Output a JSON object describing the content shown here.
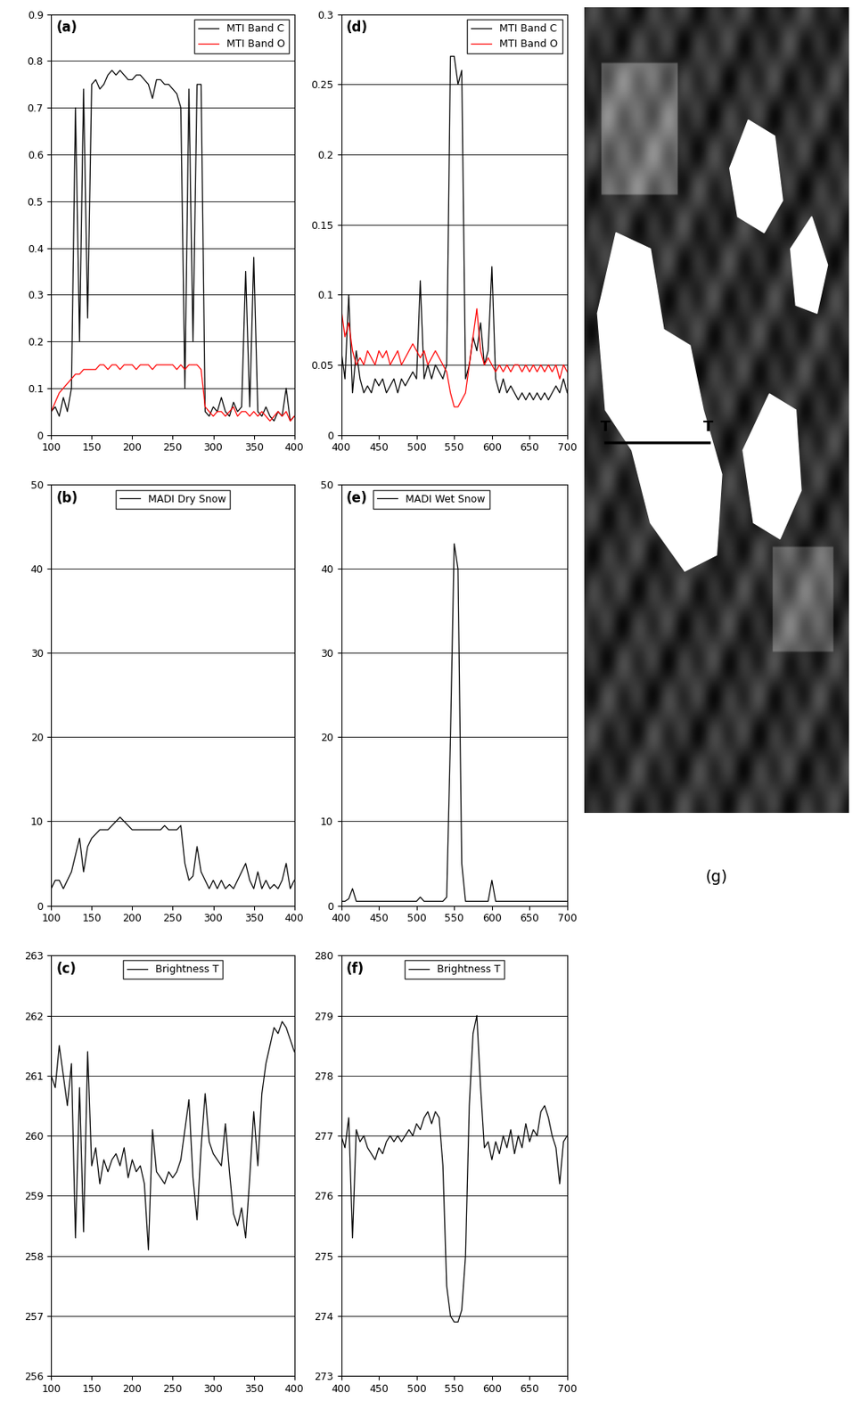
{
  "chart_data": [
    {
      "type": "line",
      "title": "(a)",
      "x": [
        100,
        105,
        110,
        115,
        120,
        125,
        130,
        135,
        140,
        145,
        150,
        155,
        160,
        165,
        170,
        175,
        180,
        185,
        190,
        195,
        200,
        205,
        210,
        215,
        220,
        225,
        230,
        235,
        240,
        245,
        250,
        255,
        260,
        265,
        270,
        275,
        280,
        285,
        290,
        295,
        300,
        305,
        310,
        315,
        320,
        325,
        330,
        335,
        340,
        345,
        350,
        355,
        360,
        365,
        370,
        375,
        380,
        385,
        390,
        395,
        400
      ],
      "series": [
        {
          "name": "MTI Band C",
          "color": "#000000",
          "values": [
            0.05,
            0.06,
            0.04,
            0.08,
            0.05,
            0.1,
            0.7,
            0.2,
            0.74,
            0.25,
            0.75,
            0.76,
            0.74,
            0.75,
            0.77,
            0.78,
            0.77,
            0.78,
            0.77,
            0.76,
            0.76,
            0.77,
            0.77,
            0.76,
            0.75,
            0.72,
            0.76,
            0.76,
            0.75,
            0.75,
            0.74,
            0.73,
            0.7,
            0.1,
            0.74,
            0.2,
            0.75,
            0.75,
            0.05,
            0.04,
            0.06,
            0.05,
            0.08,
            0.05,
            0.04,
            0.07,
            0.05,
            0.06,
            0.35,
            0.06,
            0.38,
            0.05,
            0.04,
            0.06,
            0.04,
            0.03,
            0.05,
            0.04,
            0.1,
            0.03,
            0.04
          ]
        },
        {
          "name": "MTI Band O",
          "color": "#ff0000",
          "values": [
            0.05,
            0.07,
            0.09,
            0.1,
            0.11,
            0.12,
            0.13,
            0.13,
            0.14,
            0.14,
            0.14,
            0.14,
            0.15,
            0.15,
            0.14,
            0.15,
            0.15,
            0.14,
            0.15,
            0.15,
            0.15,
            0.14,
            0.15,
            0.15,
            0.15,
            0.14,
            0.15,
            0.15,
            0.15,
            0.15,
            0.15,
            0.14,
            0.15,
            0.14,
            0.15,
            0.15,
            0.15,
            0.14,
            0.06,
            0.05,
            0.04,
            0.05,
            0.05,
            0.04,
            0.05,
            0.06,
            0.04,
            0.05,
            0.05,
            0.04,
            0.05,
            0.04,
            0.05,
            0.04,
            0.03,
            0.04,
            0.05,
            0.04,
            0.05,
            0.03,
            0.04
          ]
        }
      ],
      "xlim": [
        100,
        400
      ],
      "xticks": [
        100,
        150,
        200,
        250,
        300,
        350,
        400
      ],
      "ylim": [
        0,
        0.9
      ],
      "yticks": [
        0,
        0.1,
        0.2,
        0.3,
        0.4,
        0.5,
        0.6,
        0.7,
        0.8,
        0.9
      ],
      "grid": true,
      "legend": "upper right"
    },
    {
      "type": "line",
      "title": "(b)",
      "x": [
        100,
        105,
        110,
        115,
        120,
        125,
        130,
        135,
        140,
        145,
        150,
        155,
        160,
        165,
        170,
        175,
        180,
        185,
        190,
        195,
        200,
        205,
        210,
        215,
        220,
        225,
        230,
        235,
        240,
        245,
        250,
        255,
        260,
        265,
        270,
        275,
        280,
        285,
        290,
        295,
        300,
        305,
        310,
        315,
        320,
        325,
        330,
        335,
        340,
        345,
        350,
        355,
        360,
        365,
        370,
        375,
        380,
        385,
        390,
        395,
        400
      ],
      "series": [
        {
          "name": "MADI Dry Snow",
          "color": "#000000",
          "values": [
            2,
            3,
            3,
            2,
            3,
            4,
            6,
            8,
            4,
            7,
            8,
            8.5,
            9,
            9,
            9,
            9.5,
            10,
            10.5,
            10,
            9.5,
            9,
            9,
            9,
            9,
            9,
            9,
            9,
            9,
            9.5,
            9,
            9,
            9,
            9.5,
            5,
            3,
            3.5,
            7,
            4,
            3,
            2,
            3,
            2,
            3,
            2,
            2.5,
            2,
            3,
            4,
            5,
            3,
            2,
            4,
            2,
            3,
            2,
            2.5,
            2,
            3,
            5,
            2,
            3
          ]
        }
      ],
      "xlim": [
        100,
        400
      ],
      "xticks": [
        100,
        150,
        200,
        250,
        300,
        350,
        400
      ],
      "ylim": [
        0,
        50
      ],
      "yticks": [
        0,
        10,
        20,
        30,
        40,
        50
      ],
      "grid": true,
      "legend": "upper center"
    },
    {
      "type": "line",
      "title": "(c)",
      "x": [
        100,
        105,
        110,
        115,
        120,
        125,
        130,
        135,
        140,
        145,
        150,
        155,
        160,
        165,
        170,
        175,
        180,
        185,
        190,
        195,
        200,
        205,
        210,
        215,
        220,
        225,
        230,
        235,
        240,
        245,
        250,
        255,
        260,
        265,
        270,
        275,
        280,
        285,
        290,
        295,
        300,
        305,
        310,
        315,
        320,
        325,
        330,
        335,
        340,
        345,
        350,
        355,
        360,
        365,
        370,
        375,
        380,
        385,
        390,
        395,
        400
      ],
      "series": [
        {
          "name": "Brightness T",
          "color": "#000000",
          "values": [
            261,
            260.8,
            261.5,
            261,
            260.5,
            261.2,
            258.3,
            260.8,
            258.4,
            261.4,
            259.5,
            259.8,
            259.2,
            259.6,
            259.4,
            259.6,
            259.7,
            259.5,
            259.8,
            259.3,
            259.6,
            259.4,
            259.5,
            259.2,
            258.1,
            260.1,
            259.4,
            259.3,
            259.2,
            259.4,
            259.3,
            259.4,
            259.6,
            260.1,
            260.6,
            259.3,
            258.6,
            259.8,
            260.7,
            259.9,
            259.7,
            259.6,
            259.5,
            260.2,
            259.4,
            258.7,
            258.5,
            258.8,
            258.3,
            259.3,
            260.4,
            259.5,
            260.7,
            261.2,
            261.5,
            261.8,
            261.7,
            261.9,
            261.8,
            261.6,
            261.4
          ]
        }
      ],
      "xlim": [
        100,
        400
      ],
      "xticks": [
        100,
        150,
        200,
        250,
        300,
        350,
        400
      ],
      "ylim": [
        256,
        263
      ],
      "yticks": [
        256,
        257,
        258,
        259,
        260,
        261,
        262,
        263
      ],
      "grid": true,
      "legend": "upper center"
    },
    {
      "type": "line",
      "title": "(d)",
      "x": [
        400,
        405,
        410,
        415,
        420,
        425,
        430,
        435,
        440,
        445,
        450,
        455,
        460,
        465,
        470,
        475,
        480,
        485,
        490,
        495,
        500,
        505,
        510,
        515,
        520,
        525,
        530,
        535,
        540,
        545,
        550,
        555,
        560,
        565,
        570,
        575,
        580,
        585,
        590,
        595,
        600,
        605,
        610,
        615,
        620,
        625,
        630,
        635,
        640,
        645,
        650,
        655,
        660,
        665,
        670,
        675,
        680,
        685,
        690,
        695,
        700
      ],
      "series": [
        {
          "name": "MTI Band C",
          "color": "#000000",
          "values": [
            0.06,
            0.04,
            0.1,
            0.03,
            0.06,
            0.04,
            0.03,
            0.035,
            0.03,
            0.04,
            0.035,
            0.04,
            0.03,
            0.035,
            0.04,
            0.03,
            0.04,
            0.035,
            0.04,
            0.045,
            0.04,
            0.11,
            0.04,
            0.05,
            0.04,
            0.05,
            0.045,
            0.04,
            0.05,
            0.27,
            0.27,
            0.25,
            0.26,
            0.04,
            0.05,
            0.07,
            0.06,
            0.08,
            0.05,
            0.06,
            0.12,
            0.04,
            0.03,
            0.04,
            0.03,
            0.035,
            0.03,
            0.025,
            0.03,
            0.025,
            0.03,
            0.025,
            0.03,
            0.025,
            0.03,
            0.025,
            0.03,
            0.035,
            0.03,
            0.04,
            0.03
          ]
        },
        {
          "name": "MTI Band O",
          "color": "#ff0000",
          "values": [
            0.09,
            0.07,
            0.08,
            0.06,
            0.05,
            0.055,
            0.05,
            0.06,
            0.055,
            0.05,
            0.06,
            0.055,
            0.06,
            0.05,
            0.055,
            0.06,
            0.05,
            0.055,
            0.06,
            0.065,
            0.06,
            0.055,
            0.06,
            0.05,
            0.055,
            0.06,
            0.055,
            0.05,
            0.045,
            0.03,
            0.02,
            0.02,
            0.025,
            0.03,
            0.05,
            0.07,
            0.09,
            0.06,
            0.05,
            0.055,
            0.05,
            0.045,
            0.05,
            0.045,
            0.05,
            0.045,
            0.05,
            0.05,
            0.045,
            0.05,
            0.045,
            0.05,
            0.045,
            0.05,
            0.045,
            0.05,
            0.045,
            0.05,
            0.04,
            0.05,
            0.045
          ]
        }
      ],
      "xlim": [
        400,
        700
      ],
      "xticks": [
        400,
        450,
        500,
        550,
        600,
        650,
        700
      ],
      "ylim": [
        0,
        0.3
      ],
      "yticks": [
        0,
        0.05,
        0.1,
        0.15,
        0.2,
        0.25,
        0.3
      ],
      "grid": true,
      "legend": "upper right"
    },
    {
      "type": "line",
      "title": "(e)",
      "x": [
        400,
        405,
        410,
        415,
        420,
        425,
        430,
        435,
        440,
        445,
        450,
        455,
        460,
        465,
        470,
        475,
        480,
        485,
        490,
        495,
        500,
        505,
        510,
        515,
        520,
        525,
        530,
        535,
        540,
        545,
        550,
        555,
        560,
        565,
        570,
        575,
        580,
        585,
        590,
        595,
        600,
        605,
        610,
        615,
        620,
        625,
        630,
        635,
        640,
        645,
        650,
        655,
        660,
        665,
        670,
        675,
        680,
        685,
        690,
        695,
        700
      ],
      "series": [
        {
          "name": "MADI Wet Snow",
          "color": "#000000",
          "values": [
            0.5,
            0.5,
            0.8,
            2,
            0.5,
            0.5,
            0.5,
            0.5,
            0.5,
            0.5,
            0.5,
            0.5,
            0.5,
            0.5,
            0.5,
            0.5,
            0.5,
            0.5,
            0.5,
            0.5,
            0.5,
            1,
            0.5,
            0.5,
            0.5,
            0.5,
            0.5,
            0.5,
            1,
            20,
            43,
            40,
            5,
            0.5,
            0.5,
            0.5,
            0.5,
            0.5,
            0.5,
            0.5,
            3,
            0.5,
            0.5,
            0.5,
            0.5,
            0.5,
            0.5,
            0.5,
            0.5,
            0.5,
            0.5,
            0.5,
            0.5,
            0.5,
            0.5,
            0.5,
            0.5,
            0.5,
            0.5,
            0.5,
            0.5
          ]
        }
      ],
      "xlim": [
        400,
        700
      ],
      "xticks": [
        400,
        450,
        500,
        550,
        600,
        650,
        700
      ],
      "ylim": [
        0,
        50
      ],
      "yticks": [
        0,
        10,
        20,
        30,
        40,
        50
      ],
      "grid": true,
      "legend": "upper left"
    },
    {
      "type": "line",
      "title": "(f)",
      "x": [
        400,
        405,
        410,
        415,
        420,
        425,
        430,
        435,
        440,
        445,
        450,
        455,
        460,
        465,
        470,
        475,
        480,
        485,
        490,
        495,
        500,
        505,
        510,
        515,
        520,
        525,
        530,
        535,
        540,
        545,
        550,
        555,
        560,
        565,
        570,
        575,
        580,
        585,
        590,
        595,
        600,
        605,
        610,
        615,
        620,
        625,
        630,
        635,
        640,
        645,
        650,
        655,
        660,
        665,
        670,
        675,
        680,
        685,
        690,
        695,
        700
      ],
      "series": [
        {
          "name": "Brightness T",
          "color": "#000000",
          "values": [
            277,
            276.8,
            277.3,
            275.3,
            277.1,
            276.9,
            277,
            276.8,
            276.7,
            276.6,
            276.8,
            276.7,
            276.9,
            277,
            276.9,
            277,
            276.9,
            277,
            277.1,
            277,
            277.2,
            277.1,
            277.3,
            277.4,
            277.2,
            277.4,
            277.3,
            276.5,
            274.5,
            274,
            273.9,
            273.9,
            274.1,
            275,
            277.5,
            278.7,
            279,
            277.8,
            276.8,
            276.9,
            276.6,
            276.9,
            276.7,
            277,
            276.8,
            277.1,
            276.7,
            277,
            276.8,
            277.2,
            276.9,
            277.1,
            277,
            277.4,
            277.5,
            277.3,
            277,
            276.8,
            276.2,
            276.9,
            277
          ]
        }
      ],
      "xlim": [
        400,
        700
      ],
      "xticks": [
        400,
        450,
        500,
        550,
        600,
        650,
        700
      ],
      "ylim": [
        273,
        280
      ],
      "yticks": [
        273,
        274,
        275,
        276,
        277,
        278,
        279,
        280
      ],
      "grid": true,
      "legend": "upper center"
    }
  ],
  "image": {
    "label": "(g)",
    "transect_labels": [
      "T",
      "T"
    ]
  }
}
